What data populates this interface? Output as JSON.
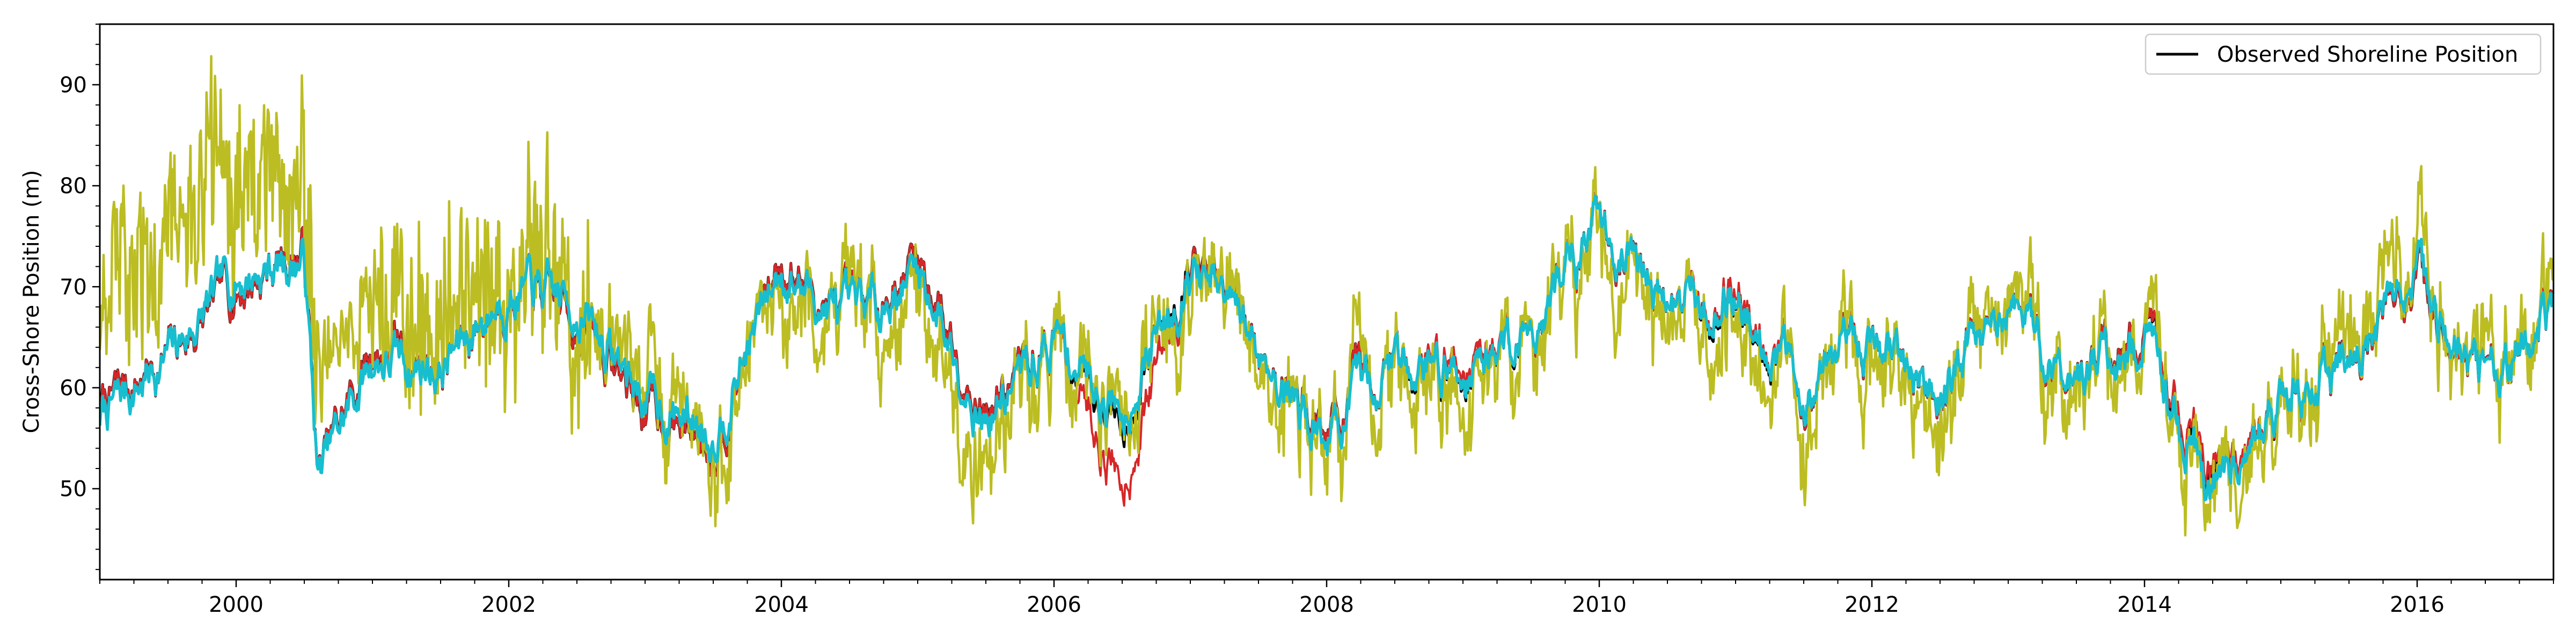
{
  "chart_data": {
    "type": "line",
    "title": "",
    "xlabel": "",
    "ylabel": "Cross-Shore Position (m)",
    "xlim": [
      1999.0,
      2017.0
    ],
    "ylim": [
      41,
      96
    ],
    "x_ticks": [
      2000,
      2002,
      2004,
      2006,
      2008,
      2010,
      2012,
      2014,
      2016
    ],
    "x_tick_labels": [
      "2000",
      "2002",
      "2004",
      "2006",
      "2008",
      "2010",
      "2012",
      "2014",
      "2016"
    ],
    "y_ticks": [
      50,
      60,
      70,
      80,
      90
    ],
    "y_tick_labels": [
      "50",
      "60",
      "70",
      "80",
      "90"
    ],
    "grid": false,
    "legend": {
      "position": "top-right",
      "entries": [
        "Observed Shoreline Position"
      ]
    },
    "colors": {
      "observed": "#000000",
      "red_series": "#d62728",
      "olive_series": "#bcbd22",
      "cyan_series": "#17becf"
    },
    "x": [
      1999.0,
      1999.5,
      2000.0,
      2000.5,
      2000.6,
      2001.0,
      2001.5,
      2002.0,
      2002.5,
      2003.0,
      2003.5,
      2004.0,
      2004.5,
      2005.0,
      2005.5,
      2006.0,
      2006.5,
      2007.0,
      2007.5,
      2008.0,
      2008.5,
      2009.0,
      2009.5,
      2010.0,
      2010.5,
      2011.0,
      2011.5,
      2012.0,
      2012.5,
      2013.0,
      2013.5,
      2014.0,
      2014.5,
      2015.0,
      2015.5,
      2016.0,
      2016.5,
      2017.0
    ],
    "series": [
      {
        "name": "Observed Shoreline Position",
        "color": "#000000",
        "values": [
          58,
          63,
          70,
          74,
          51,
          64,
          62,
          70,
          67,
          58,
          55,
          73,
          66,
          73,
          58,
          65,
          57,
          73,
          64,
          56,
          63,
          62,
          66,
          77,
          68,
          69,
          60,
          65,
          60,
          68,
          61,
          65,
          51,
          60,
          62,
          70,
          61,
          67
        ]
      },
      {
        "values": [
          58,
          63,
          70,
          74,
          51,
          64,
          62,
          70,
          67,
          58,
          55,
          73,
          66,
          73,
          58,
          65,
          51,
          73,
          64,
          56,
          63,
          63,
          66,
          77,
          68,
          70,
          60,
          65,
          60,
          68,
          61,
          65,
          52,
          60,
          62,
          70,
          61,
          67
        ]
      },
      {
        "values": [
          69,
          74,
          82,
          80,
          58,
          70,
          68,
          73,
          67,
          62,
          56,
          71,
          64,
          70,
          54,
          64,
          60,
          71,
          63,
          55,
          62,
          60,
          66,
          75,
          66,
          68,
          58,
          63,
          58,
          69,
          60,
          64,
          50,
          60,
          64,
          72,
          62,
          68
        ]
      },
      {
        "values": [
          57,
          63,
          71,
          73,
          51,
          63,
          62,
          70,
          68,
          59,
          56,
          72,
          66,
          72,
          57,
          65,
          58,
          72,
          64,
          55,
          63,
          62,
          66,
          77,
          68,
          69,
          60,
          65,
          60,
          68,
          61,
          64,
          50,
          60,
          62,
          71,
          61,
          67
        ]
      }
    ]
  }
}
